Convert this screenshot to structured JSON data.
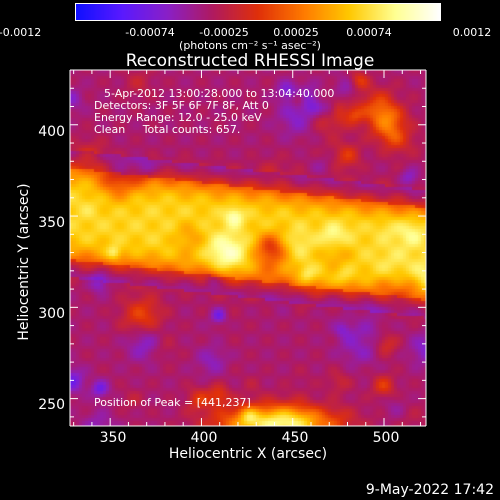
{
  "colorbar": {
    "ticks": [
      "-0.0012",
      "-0.00074",
      "-0.00025",
      "0.00025",
      "0.00074",
      "0.0012"
    ],
    "units_label": "(photons cm⁻² s⁻¹ asec⁻²)",
    "colors": [
      "#1010ff",
      "#5a1aff",
      "#8a20c8",
      "#b01a60",
      "#e0300a",
      "#ff7a00",
      "#ffc800",
      "#ffff90",
      "#ffffff"
    ]
  },
  "chart_data": {
    "type": "heatmap",
    "title": "Reconstructed RHESSI Image",
    "xlabel": "Heliocentric X (arcsec)",
    "ylabel": "Heliocentric Y (arcsec)",
    "xlim": [
      328,
      523
    ],
    "ylim": [
      235,
      430
    ],
    "xticks": [
      "350",
      "400",
      "450",
      "500"
    ],
    "yticks": [
      "400",
      "350",
      "300",
      "250"
    ],
    "color_range": [
      -0.0012,
      0.0012
    ],
    "bright_band": {
      "y_center_at_x": [
        [
          328,
          352
        ],
        [
          523,
          330
        ]
      ],
      "half_width": 28
    },
    "bottom_source": {
      "x": 441,
      "y": 237
    }
  },
  "annotations": {
    "time_range": "5-Apr-2012 13:00:28.000 to 13:04:40.000",
    "detectors": "Detectors: 3F 5F 6F 7F 8F, Att 0",
    "energy_range": "Energy Range: 12.0 - 25.0 keV",
    "clean_counts": "Clean     Total counts: 657.",
    "peak": "Position of Peak = [441,237]"
  },
  "footer_date": "9-May-2022 17:42"
}
